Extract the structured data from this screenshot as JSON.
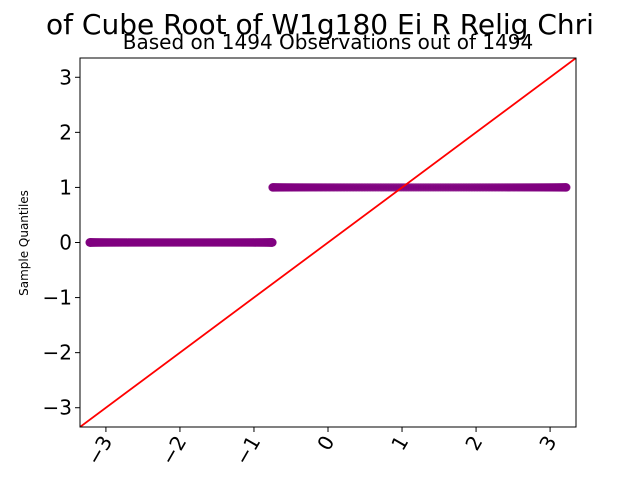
{
  "chart_data": {
    "type": "scatter",
    "title": "of Cube Root of W1g180 Ei R Relig Chri",
    "subtitle": "Based on 1494 Observations out of 1494",
    "xlabel": "",
    "ylabel": "Sample Quantiles",
    "xlim": [
      -3.35,
      3.35
    ],
    "ylim": [
      -3.35,
      3.35
    ],
    "x_ticks": [
      -3,
      -2,
      -1,
      0,
      1,
      2,
      3
    ],
    "x_tick_labels": [
      "−3",
      "−2",
      "−1",
      "0",
      "1",
      "2",
      "3"
    ],
    "y_ticks": [
      -3,
      -2,
      -1,
      0,
      1,
      2,
      3
    ],
    "y_tick_labels": [
      "−3",
      "−2",
      "−1",
      "0",
      "1",
      "2",
      "3"
    ],
    "grid": false,
    "reference_line": {
      "slope": 1,
      "intercept": 0,
      "color": "#ff0000"
    },
    "series": [
      {
        "color": "#800080",
        "groups": [
          {
            "y": 0,
            "x_min": -3.22,
            "x_max": -0.75
          },
          {
            "y": 1,
            "x_min": -0.75,
            "x_max": 3.22
          }
        ]
      }
    ]
  }
}
